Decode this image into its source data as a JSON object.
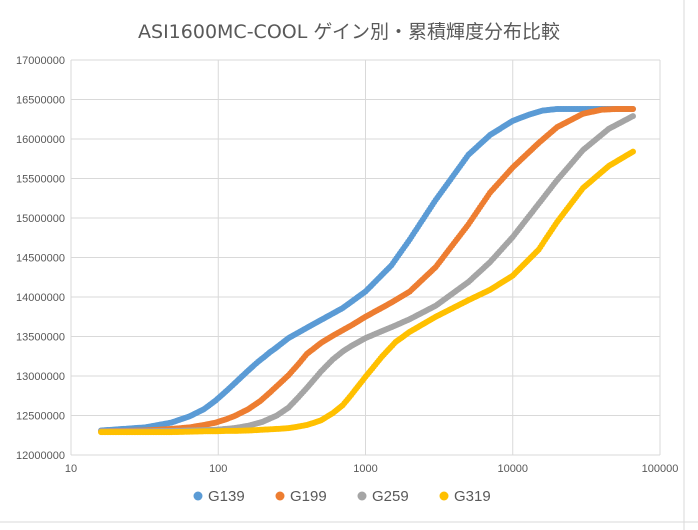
{
  "chart_data": {
    "type": "scatter",
    "title": "ASI1600MC-COOL ゲイン別・累積輝度分布比較",
    "xlabel": "",
    "ylabel": "",
    "x_scale": "log",
    "xlim": [
      10,
      100000
    ],
    "ylim": [
      12000000,
      17000000
    ],
    "x_ticks": [
      10,
      100,
      1000,
      10000,
      100000
    ],
    "x_tick_labels": [
      "10",
      "100",
      "1000",
      "10000",
      "100000"
    ],
    "y_ticks": [
      12000000,
      12500000,
      13000000,
      13500000,
      14000000,
      14500000,
      15000000,
      15500000,
      16000000,
      16500000,
      17000000
    ],
    "y_tick_labels": [
      "12000000",
      "12500000",
      "13000000",
      "13500000",
      "14000000",
      "14500000",
      "15000000",
      "15500000",
      "16000000",
      "16500000",
      "17000000"
    ],
    "grid": true,
    "legend_position": "bottom",
    "series": [
      {
        "name": "G139",
        "color": "#5b9bd5",
        "x": [
          16,
          32,
          48,
          64,
          80,
          96,
          112,
          128,
          144,
          160,
          176,
          192,
          208,
          224,
          240,
          256,
          300,
          400,
          500,
          700,
          1000,
          1500,
          2000,
          3000,
          5000,
          7000,
          10000,
          13000,
          16000,
          20000,
          25000,
          32000,
          45000,
          65535
        ],
        "y": [
          12310000,
          12350000,
          12410000,
          12490000,
          12580000,
          12690000,
          12800000,
          12900000,
          12990000,
          13070000,
          13140000,
          13200000,
          13250000,
          13300000,
          13340000,
          13380000,
          13480000,
          13610000,
          13710000,
          13860000,
          14070000,
          14400000,
          14730000,
          15230000,
          15800000,
          16050000,
          16230000,
          16310000,
          16360000,
          16380000,
          16380000,
          16380000,
          16380000,
          16380000
        ]
      },
      {
        "name": "G199",
        "color": "#ed7d31",
        "x": [
          16,
          32,
          48,
          64,
          80,
          96,
          112,
          128,
          160,
          192,
          224,
          256,
          300,
          350,
          400,
          500,
          600,
          800,
          1000,
          1500,
          2000,
          3000,
          5000,
          7000,
          10000,
          15000,
          20000,
          30000,
          40000,
          50000,
          65535
        ],
        "y": [
          12300000,
          12310000,
          12330000,
          12350000,
          12380000,
          12410000,
          12450000,
          12490000,
          12580000,
          12680000,
          12790000,
          12890000,
          13010000,
          13150000,
          13280000,
          13420000,
          13510000,
          13640000,
          13750000,
          13930000,
          14070000,
          14380000,
          14920000,
          15320000,
          15640000,
          15950000,
          16150000,
          16320000,
          16370000,
          16380000,
          16380000
        ]
      },
      {
        "name": "G259",
        "color": "#a5a5a5",
        "x": [
          16,
          32,
          48,
          64,
          80,
          96,
          112,
          128,
          160,
          200,
          250,
          300,
          350,
          400,
          450,
          500,
          600,
          700,
          800,
          1000,
          1300,
          1600,
          2000,
          3000,
          5000,
          7000,
          10000,
          15000,
          20000,
          30000,
          45000,
          65535
        ],
        "y": [
          12300000,
          12300000,
          12305000,
          12310000,
          12315000,
          12320000,
          12330000,
          12340000,
          12370000,
          12420000,
          12500000,
          12600000,
          12730000,
          12850000,
          12960000,
          13060000,
          13210000,
          13310000,
          13380000,
          13480000,
          13570000,
          13640000,
          13720000,
          13890000,
          14190000,
          14440000,
          14760000,
          15180000,
          15480000,
          15860000,
          16130000,
          16290000
        ]
      },
      {
        "name": "G319",
        "color": "#ffc000",
        "x": [
          16,
          32,
          48,
          64,
          80,
          96,
          112,
          128,
          160,
          200,
          250,
          300,
          350,
          400,
          450,
          500,
          600,
          700,
          800,
          1000,
          1300,
          1600,
          2000,
          3000,
          5000,
          7000,
          10000,
          15000,
          20000,
          30000,
          45000,
          65535
        ],
        "y": [
          12290000,
          12290000,
          12290000,
          12295000,
          12300000,
          12300000,
          12305000,
          12305000,
          12310000,
          12320000,
          12330000,
          12340000,
          12360000,
          12380000,
          12410000,
          12440000,
          12530000,
          12630000,
          12760000,
          12990000,
          13250000,
          13430000,
          13560000,
          13750000,
          13960000,
          14090000,
          14270000,
          14600000,
          14950000,
          15380000,
          15660000,
          15840000
        ]
      }
    ]
  }
}
